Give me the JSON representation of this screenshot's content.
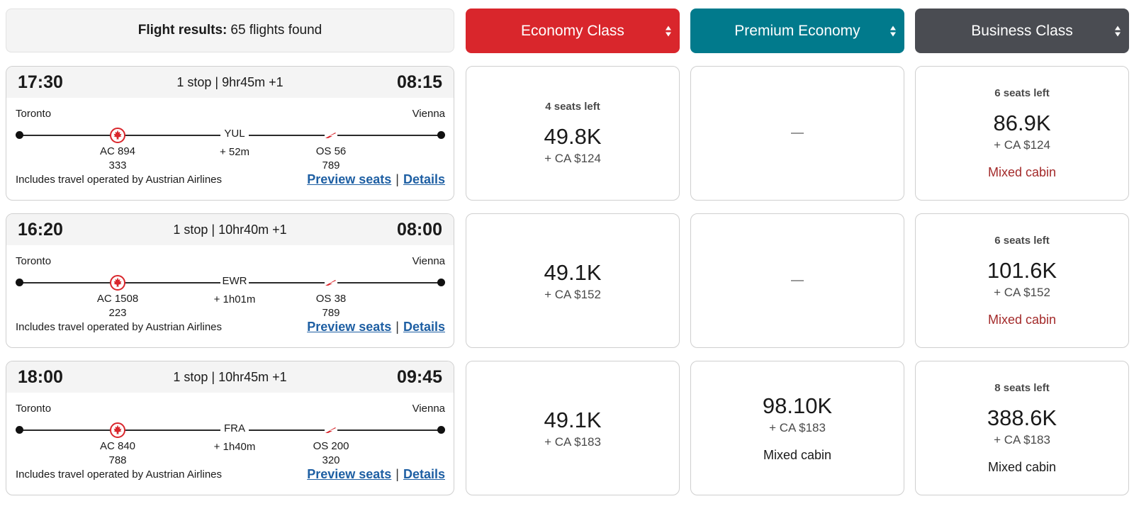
{
  "summary": {
    "label": "Flight results:",
    "count": "65 flights found"
  },
  "colors": {
    "economy": "#d9262c",
    "premium": "#017a8c",
    "business": "#4a4c52",
    "mixed_cabin_red": "#a32a2a",
    "link": "#1e5fa3"
  },
  "cabins": [
    {
      "label": "Economy Class"
    },
    {
      "label": "Premium Economy"
    },
    {
      "label": "Business Class"
    }
  ],
  "flights": [
    {
      "depart": "17:30",
      "arrive": "08:15",
      "summary": "1 stop | 9hr45m +1",
      "origin": "Toronto",
      "destination": "Vienna",
      "stop": {
        "code": "YUL",
        "layover": "+ 52m"
      },
      "segments": [
        {
          "airline_icon": "air-canada-maple-icon",
          "flight": "AC 894",
          "equipment": "333"
        },
        {
          "airline_icon": "austrian-chevron-icon",
          "flight": "OS 56",
          "equipment": "789"
        }
      ],
      "note": "Includes travel operated by Austrian Airlines",
      "preview_label": "Preview seats",
      "details_label": "Details",
      "fares": [
        {
          "seats": "4 seats left",
          "points": "49.8K",
          "tax": "+ CA $124",
          "mixed": ""
        },
        {
          "seats": "",
          "points": "",
          "tax": "",
          "mixed": "",
          "unavailable": true
        },
        {
          "seats": "6 seats left",
          "points": "86.9K",
          "tax": "+ CA $124",
          "mixed": "Mixed cabin",
          "mixed_style": "red"
        }
      ]
    },
    {
      "depart": "16:20",
      "arrive": "08:00",
      "summary": "1 stop | 10hr40m +1",
      "origin": "Toronto",
      "destination": "Vienna",
      "stop": {
        "code": "EWR",
        "layover": "+ 1h01m"
      },
      "segments": [
        {
          "airline_icon": "air-canada-maple-icon",
          "flight": "AC 1508",
          "equipment": "223"
        },
        {
          "airline_icon": "austrian-chevron-icon",
          "flight": "OS 38",
          "equipment": "789"
        }
      ],
      "note": "Includes travel operated by Austrian Airlines",
      "preview_label": "Preview seats",
      "details_label": "Details",
      "fares": [
        {
          "seats": "",
          "points": "49.1K",
          "tax": "+ CA $152",
          "mixed": ""
        },
        {
          "seats": "",
          "points": "",
          "tax": "",
          "mixed": "",
          "unavailable": true
        },
        {
          "seats": "6 seats left",
          "points": "101.6K",
          "tax": "+ CA $152",
          "mixed": "Mixed cabin",
          "mixed_style": "red"
        }
      ]
    },
    {
      "depart": "18:00",
      "arrive": "09:45",
      "summary": "1 stop | 10hr45m +1",
      "origin": "Toronto",
      "destination": "Vienna",
      "stop": {
        "code": "FRA",
        "layover": "+ 1h40m"
      },
      "segments": [
        {
          "airline_icon": "air-canada-maple-icon",
          "flight": "AC 840",
          "equipment": "788"
        },
        {
          "airline_icon": "austrian-chevron-icon",
          "flight": "OS 200",
          "equipment": "320"
        }
      ],
      "note": "Includes travel operated by Austrian Airlines",
      "preview_label": "Preview seats",
      "details_label": "Details",
      "fares": [
        {
          "seats": "",
          "points": "49.1K",
          "tax": "+ CA $183",
          "mixed": ""
        },
        {
          "seats": "",
          "points": "98.10K",
          "tax": "+ CA $183",
          "mixed": "Mixed cabin",
          "mixed_style": "dark"
        },
        {
          "seats": "8 seats left",
          "points": "388.6K",
          "tax": "+ CA $183",
          "mixed": "Mixed cabin",
          "mixed_style": "dark"
        }
      ]
    }
  ]
}
